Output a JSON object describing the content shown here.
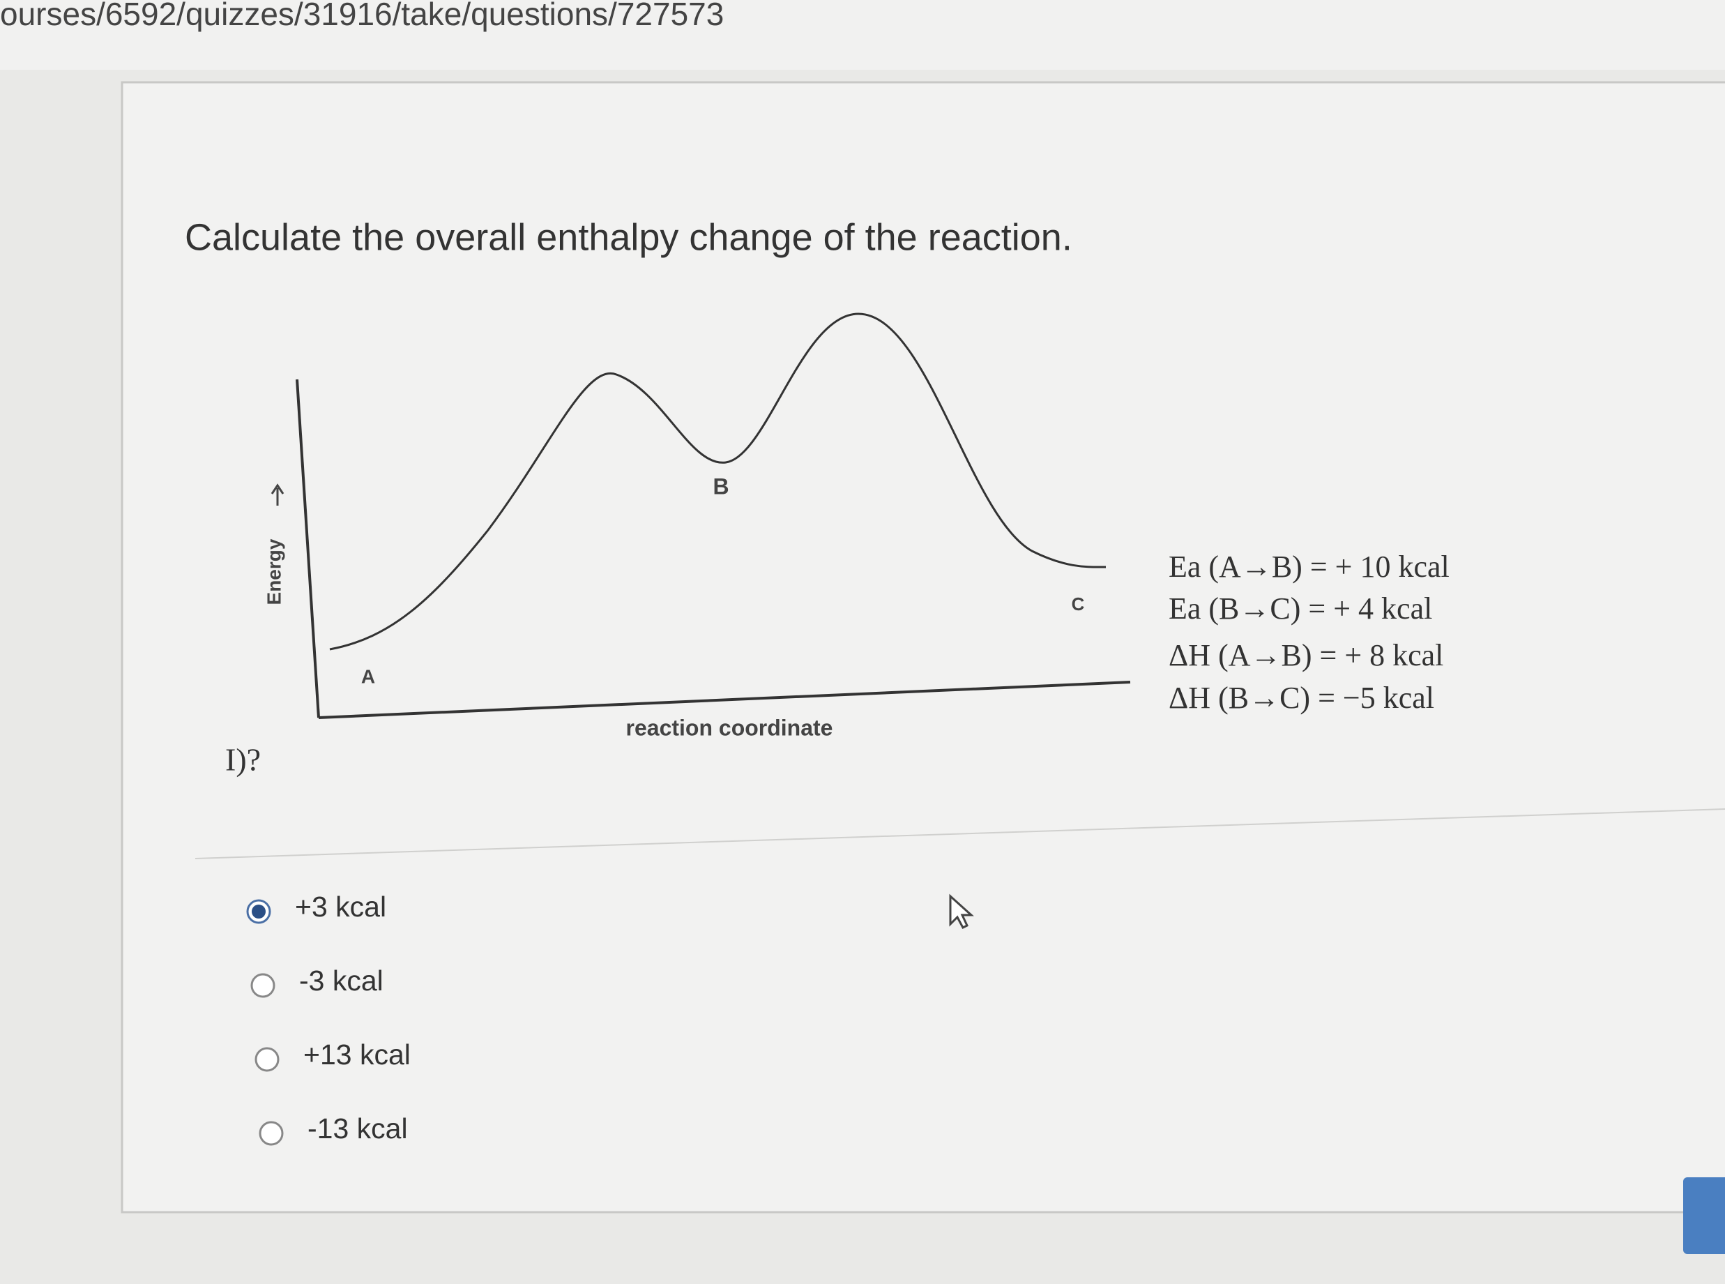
{
  "browser": {
    "url": "ourses/6592/quizzes/31916/take/questions/727573"
  },
  "question": {
    "text": "Calculate the overall enthalpy change of the reaction.",
    "diagram": {
      "y_axis_label": "Energy",
      "x_axis_label": "reaction coordinate",
      "points": [
        "A",
        "B",
        "C"
      ],
      "given": [
        "Ea (A→B) = + 10 kcal",
        "Ea (B→C) =  + 4 kcal",
        "ΔH (A→B) = + 8 kcal",
        "ΔH (B→C) =  −5 kcal"
      ]
    },
    "fragment": "I)?",
    "options": [
      "+3 kcal",
      "-3 kcal",
      "+13 kcal",
      "-13 kcal"
    ],
    "selected": 0
  }
}
